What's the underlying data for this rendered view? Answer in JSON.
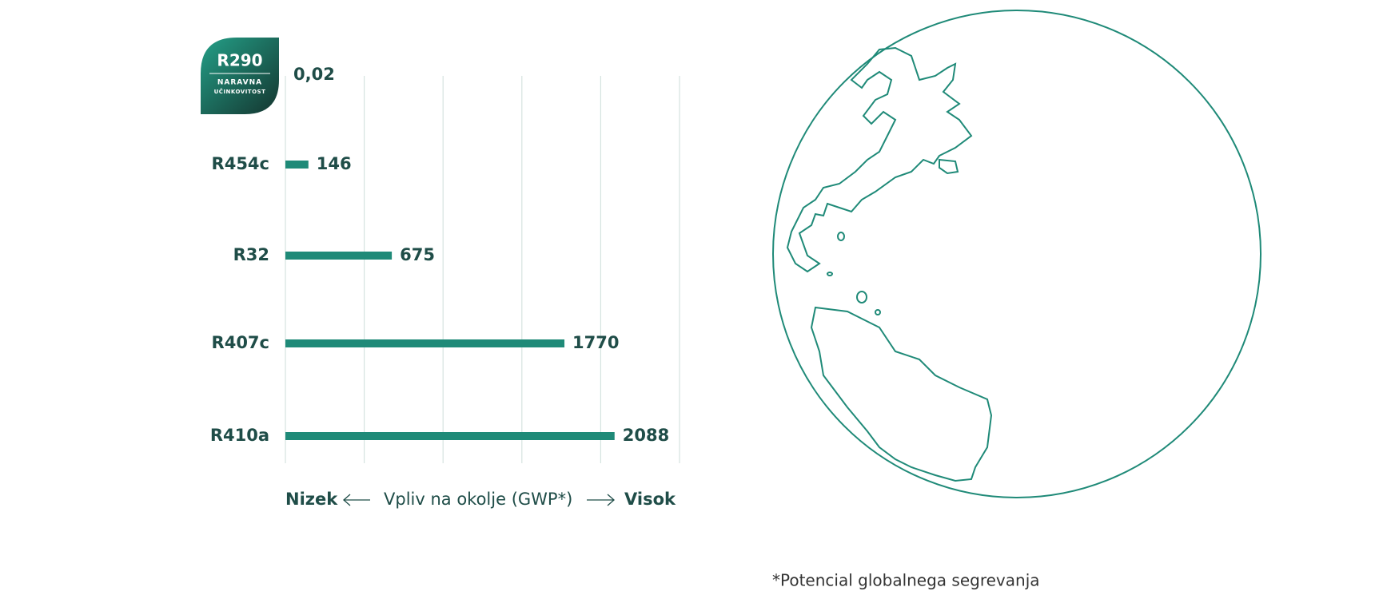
{
  "chart_data": {
    "type": "bar",
    "orientation": "horizontal",
    "categories": [
      "R290",
      "R454c",
      "R32",
      "R407c",
      "R410a"
    ],
    "values": [
      0.02,
      146,
      675,
      1770,
      2088
    ],
    "value_labels": [
      "0,02",
      "146",
      "675",
      "1770",
      "2088"
    ],
    "color": "#1f8a78",
    "xlim": [
      0,
      2500
    ],
    "xticks": [
      0,
      500,
      1000,
      1500,
      2000,
      2500
    ],
    "grid": true,
    "badge": {
      "line1": "NARAVNA",
      "line2": "UČINKOVITOST"
    },
    "x_axis": {
      "low": "Nizek",
      "label": "Vpliv na okolje (GWP*)",
      "high": "Visok"
    },
    "footnote": "*Potencial globalnega segrevanja"
  }
}
